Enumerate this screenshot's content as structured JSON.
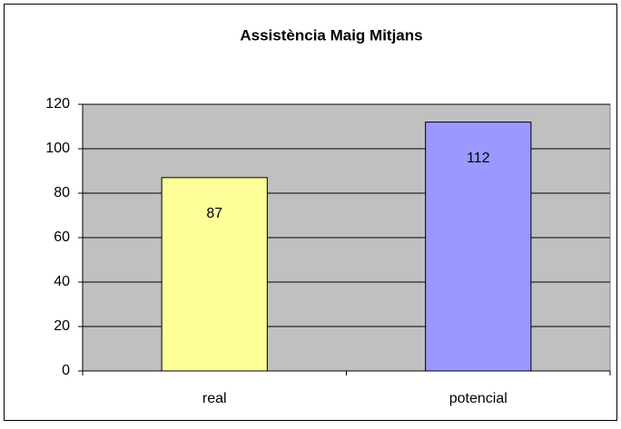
{
  "chart_data": {
    "type": "bar",
    "title": "Assistència Maig Mitjans",
    "categories": [
      "real",
      "potencial"
    ],
    "values": [
      87,
      112
    ],
    "colors": [
      "#ffff99",
      "#9999ff"
    ],
    "plot_background": "#c0c0c0",
    "ylim": [
      0,
      120
    ],
    "yticks": [
      0,
      20,
      40,
      60,
      80,
      100,
      120
    ],
    "grid": true
  }
}
